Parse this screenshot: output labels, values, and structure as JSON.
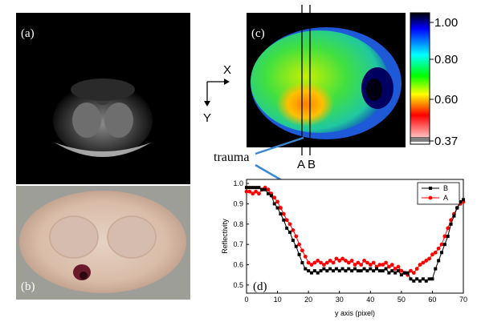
{
  "panels": {
    "a": {
      "label": "(a)"
    },
    "b": {
      "label": "(b)"
    },
    "c": {
      "label": "(c)",
      "line_a": "A",
      "line_b": "B"
    },
    "d": {
      "label": "(d)"
    }
  },
  "axes_indicator": {
    "x": "X",
    "y": "Y"
  },
  "annotation": {
    "text": "trauma",
    "arrow_color": "#3a87d4"
  },
  "colorbar": {
    "ticks": [
      "1.00",
      "0.80",
      "0.60",
      "0.37"
    ],
    "colors_top_to_bottom": [
      "#000000",
      "#0000ff",
      "#00ffff",
      "#00ff00",
      "#ffff00",
      "#ff0000",
      "#ffffff"
    ]
  },
  "chart_data": {
    "type": "line",
    "xlabel": "y axis (pixel)",
    "ylabel": "Reflectivity",
    "xlim": [
      0,
      70
    ],
    "ylim": [
      0.46,
      1.02
    ],
    "xticks": [
      0,
      10,
      20,
      30,
      40,
      50,
      60,
      70
    ],
    "yticks": [
      0.5,
      0.6,
      0.7,
      0.8,
      0.9,
      1.0
    ],
    "legend_position": "top-right",
    "series": [
      {
        "name": "B",
        "color": "#000000",
        "marker": "square",
        "x": [
          0,
          1,
          2,
          3,
          4,
          5,
          6,
          7,
          8,
          9,
          10,
          11,
          12,
          13,
          14,
          15,
          16,
          17,
          18,
          19,
          20,
          21,
          22,
          23,
          24,
          25,
          26,
          27,
          28,
          29,
          30,
          31,
          32,
          33,
          34,
          35,
          36,
          37,
          38,
          39,
          40,
          41,
          42,
          43,
          44,
          45,
          46,
          47,
          48,
          49,
          50,
          51,
          52,
          53,
          54,
          55,
          56,
          57,
          58,
          59,
          60,
          61,
          62,
          63,
          64,
          65,
          66,
          67,
          68,
          69,
          70
        ],
        "y": [
          0.98,
          0.98,
          0.98,
          0.98,
          0.98,
          0.97,
          0.97,
          0.95,
          0.94,
          0.9,
          0.88,
          0.85,
          0.82,
          0.78,
          0.76,
          0.72,
          0.69,
          0.65,
          0.61,
          0.58,
          0.57,
          0.56,
          0.57,
          0.56,
          0.57,
          0.58,
          0.57,
          0.58,
          0.57,
          0.58,
          0.57,
          0.58,
          0.57,
          0.58,
          0.57,
          0.58,
          0.57,
          0.57,
          0.58,
          0.57,
          0.58,
          0.57,
          0.58,
          0.57,
          0.57,
          0.58,
          0.56,
          0.57,
          0.56,
          0.57,
          0.55,
          0.56,
          0.56,
          0.53,
          0.52,
          0.53,
          0.52,
          0.53,
          0.52,
          0.53,
          0.53,
          0.58,
          0.62,
          0.66,
          0.7,
          0.74,
          0.8,
          0.84,
          0.88,
          0.91,
          0.92
        ]
      },
      {
        "name": "A",
        "color": "#ff0000",
        "marker": "circle",
        "x": [
          0,
          1,
          2,
          3,
          4,
          5,
          6,
          7,
          8,
          9,
          10,
          11,
          12,
          13,
          14,
          15,
          16,
          17,
          18,
          19,
          20,
          21,
          22,
          23,
          24,
          25,
          26,
          27,
          28,
          29,
          30,
          31,
          32,
          33,
          34,
          35,
          36,
          37,
          38,
          39,
          40,
          41,
          42,
          43,
          44,
          45,
          46,
          47,
          48,
          49,
          50,
          51,
          52,
          53,
          54,
          55,
          56,
          57,
          58,
          59,
          60,
          61,
          62,
          63,
          64,
          65,
          66,
          67,
          68,
          69,
          70
        ],
        "y": [
          0.96,
          0.96,
          0.95,
          0.96,
          0.95,
          0.97,
          0.98,
          0.97,
          0.95,
          0.93,
          0.91,
          0.88,
          0.85,
          0.82,
          0.8,
          0.77,
          0.74,
          0.7,
          0.67,
          0.64,
          0.61,
          0.6,
          0.61,
          0.62,
          0.61,
          0.6,
          0.61,
          0.62,
          0.61,
          0.63,
          0.62,
          0.63,
          0.62,
          0.61,
          0.62,
          0.6,
          0.61,
          0.6,
          0.62,
          0.61,
          0.6,
          0.61,
          0.59,
          0.6,
          0.6,
          0.61,
          0.59,
          0.6,
          0.58,
          0.59,
          0.57,
          0.56,
          0.55,
          0.57,
          0.56,
          0.58,
          0.6,
          0.61,
          0.62,
          0.63,
          0.65,
          0.66,
          0.68,
          0.7,
          0.74,
          0.78,
          0.82,
          0.85,
          0.88,
          0.9,
          0.91
        ]
      }
    ]
  }
}
